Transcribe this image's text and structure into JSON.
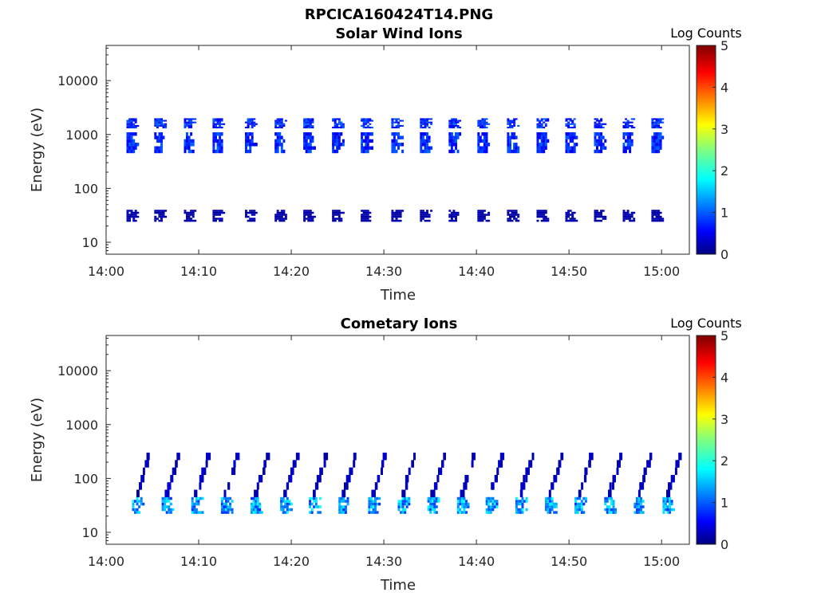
{
  "figure_title": "RPCICA160424T14.PNG",
  "chart_data": [
    {
      "type": "heatmap",
      "title": "Solar Wind Ions",
      "xlabel": "Time",
      "ylabel": "Energy (eV)",
      "xlim": [
        "14:00",
        "15:03"
      ],
      "ylim": [
        6,
        45000
      ],
      "y_scale": "log",
      "x_ticks": [
        "14:00",
        "14:10",
        "14:20",
        "14:30",
        "14:40",
        "14:50",
        "15:00"
      ],
      "y_ticks": [
        "10",
        "100",
        "1000",
        "10000"
      ],
      "colorbar": {
        "label": "Log Counts",
        "range": [
          0,
          5
        ],
        "ticks": [
          "0",
          "1",
          "2",
          "3",
          "4",
          "5"
        ],
        "colormap": "jet"
      },
      "bursts_minutes": [
        2.5,
        5.5,
        8.7,
        11.8,
        15.3,
        18.5,
        21.6,
        24.7,
        27.8,
        31.1,
        34.2,
        37.3,
        40.4,
        43.6,
        46.8,
        49.9,
        53.0,
        56.1,
        59.2
      ],
      "bands": [
        {
          "energy_range_eV": [
            450,
            1100
          ],
          "log_counts": 0.8
        },
        {
          "energy_range_eV": [
            1300,
            2000
          ],
          "log_counts": 0.8
        },
        {
          "energy_range_eV": [
            24,
            40
          ],
          "log_counts": 0.2
        }
      ]
    },
    {
      "type": "heatmap",
      "title": "Cometary Ions",
      "xlabel": "Time",
      "ylabel": "Energy (eV)",
      "xlim": [
        "14:00",
        "15:03"
      ],
      "ylim": [
        6,
        45000
      ],
      "y_scale": "log",
      "x_ticks": [
        "14:00",
        "14:10",
        "14:20",
        "14:30",
        "14:40",
        "14:50",
        "15:00"
      ],
      "y_ticks": [
        "10",
        "100",
        "1000",
        "10000"
      ],
      "colorbar": {
        "label": "Log Counts",
        "range": [
          0,
          5
        ],
        "ticks": [
          "0",
          "1",
          "2",
          "3",
          "4",
          "5"
        ],
        "colormap": "jet"
      },
      "bursts_minutes": [
        3.1,
        6.3,
        9.5,
        12.7,
        15.9,
        19.1,
        22.2,
        25.4,
        28.6,
        31.8,
        35.0,
        38.2,
        41.3,
        44.5,
        47.7,
        50.9,
        54.1,
        57.3,
        60.4
      ],
      "bands": [
        {
          "energy_range_eV": [
            22,
            45
          ],
          "log_counts": 1.4
        },
        {
          "energy_range_eV": [
            45,
            300
          ],
          "log_counts": 0.3
        }
      ]
    }
  ],
  "colors": {
    "frame": "#262626",
    "background": "#ffffff"
  }
}
